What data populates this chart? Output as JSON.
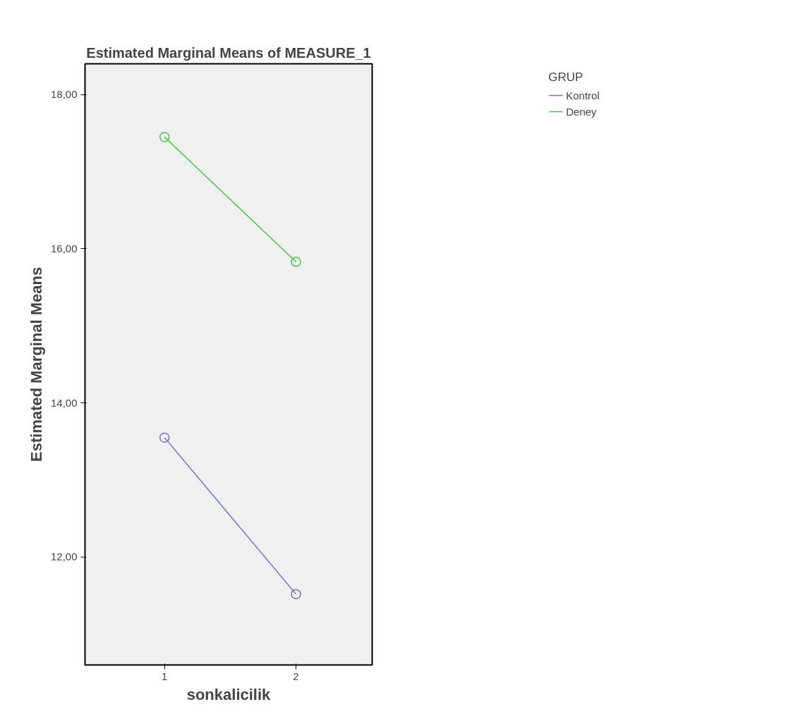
{
  "chart_data": {
    "type": "line",
    "title": "Estimated Marginal Means of MEASURE_1",
    "xlabel": "sonkalicilik",
    "ylabel": "Estimated Marginal Means",
    "legend_title": "GRUP",
    "categories": [
      "1",
      "2"
    ],
    "series": [
      {
        "name": "Kontrol",
        "color": "#6674d0",
        "values": [
          13.55,
          11.52
        ]
      },
      {
        "name": "Deney",
        "color": "#3ec83e",
        "values": [
          17.45,
          15.83
        ]
      }
    ],
    "ylim": [
      10.6,
      18.4
    ],
    "yticks": [
      {
        "value": 12,
        "label": "12,00"
      },
      {
        "value": 14,
        "label": "14,00"
      },
      {
        "value": 16,
        "label": "16,00"
      },
      {
        "value": 18,
        "label": "18,00"
      }
    ],
    "marker": "circle",
    "line_style": "solid",
    "legend": "top right",
    "grid": false
  }
}
